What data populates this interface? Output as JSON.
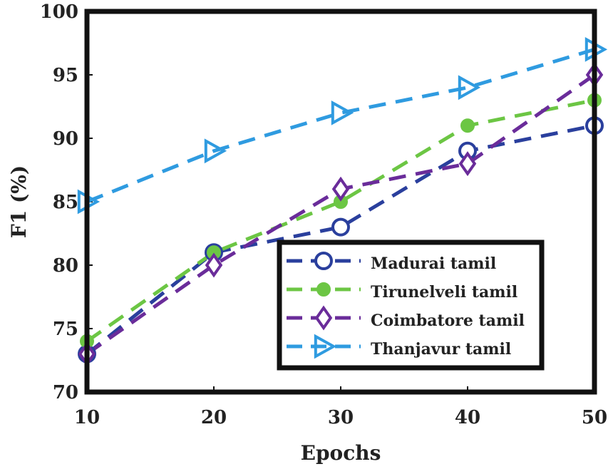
{
  "chart_data": {
    "type": "line",
    "title": "",
    "xlabel": "Epochs",
    "ylabel": "F1 (%)",
    "x": [
      10,
      20,
      30,
      40,
      50
    ],
    "xlim": [
      10,
      50
    ],
    "ylim": [
      70,
      100
    ],
    "xticks": [
      "10",
      "20",
      "30",
      "40",
      "50"
    ],
    "yticks": [
      "70",
      "75",
      "80",
      "85",
      "90",
      "95",
      "100"
    ],
    "grid": false,
    "legend_position": "bottom-right",
    "series": [
      {
        "name": "Madurai tamil",
        "values": [
          73,
          81,
          83,
          89,
          91
        ],
        "color": "#2a3f9d",
        "marker": "circle"
      },
      {
        "name": "Tirunelveli tamil",
        "values": [
          74,
          81,
          85,
          91,
          93
        ],
        "color": "#6cc644",
        "marker": "filled-circle"
      },
      {
        "name": "Coimbatore tamil",
        "values": [
          73,
          80,
          86,
          88,
          95
        ],
        "color": "#6a2c9a",
        "marker": "diamond"
      },
      {
        "name": "Thanjavur tamil",
        "values": [
          85,
          89,
          92,
          94,
          97
        ],
        "color": "#2f9be0",
        "marker": "triangle-right"
      }
    ]
  }
}
